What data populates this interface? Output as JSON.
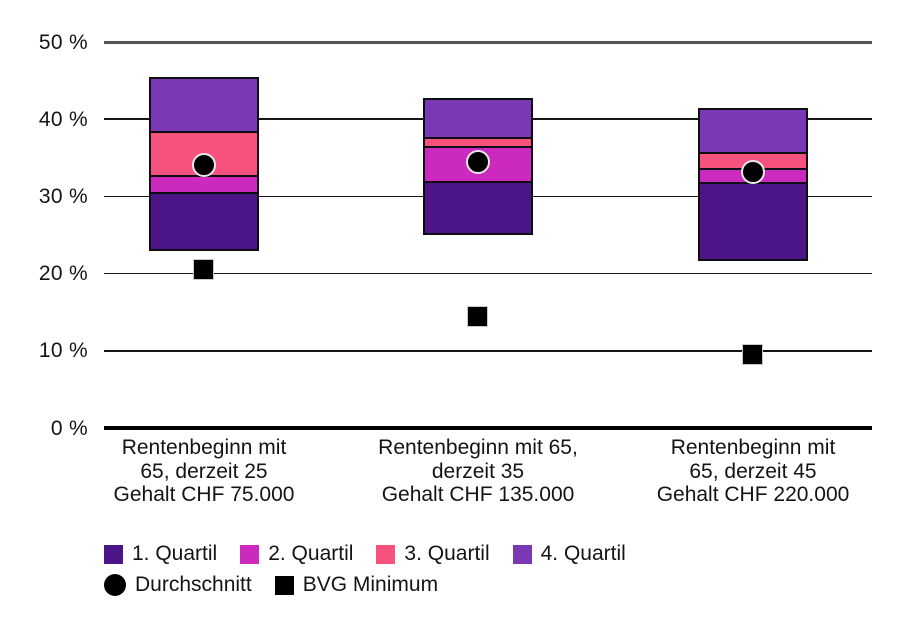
{
  "chart_data": {
    "type": "bar",
    "subtype": "stacked-quartile-ranges-with-markers",
    "title": "",
    "xlabel": "",
    "ylabel": "",
    "ylim": [
      0,
      50
    ],
    "grid": true,
    "y_ticks": [
      {
        "value": 0,
        "label": "0 %"
      },
      {
        "value": 10,
        "label": "10 %"
      },
      {
        "value": 20,
        "label": "20 %"
      },
      {
        "value": 30,
        "label": "30 %"
      },
      {
        "value": 40,
        "label": "40 %"
      },
      {
        "value": 50,
        "label": "50 %"
      }
    ],
    "categories": [
      {
        "lines": [
          "Rentenbeginn mit",
          "65, derzeit 25",
          "Gehalt CHF 75.000"
        ]
      },
      {
        "lines": [
          "Rentenbeginn mit 65,",
          "derzeit 35",
          "Gehalt CHF 135.000"
        ]
      },
      {
        "lines": [
          "Rentenbeginn mit",
          "65, derzeit 45",
          "Gehalt CHF 220.000"
        ]
      }
    ],
    "series": [
      {
        "name": "1. Quartil",
        "color": "#4B1487",
        "ranges": [
          [
            23.1,
            30.5
          ],
          [
            25.1,
            31.9
          ],
          [
            21.7,
            31.7
          ]
        ]
      },
      {
        "name": "2. Quartil",
        "color": "#CC29BE",
        "ranges": [
          [
            30.5,
            32.6
          ],
          [
            31.9,
            36.4
          ],
          [
            31.7,
            33.6
          ]
        ]
      },
      {
        "name": "3. Quartil",
        "color": "#F7527D",
        "ranges": [
          [
            32.6,
            38.4
          ],
          [
            36.4,
            37.6
          ],
          [
            33.6,
            35.6
          ]
        ]
      },
      {
        "name": "4. Quartil",
        "color": "#7A38B4",
        "ranges": [
          [
            38.4,
            45.4
          ],
          [
            37.6,
            42.6
          ],
          [
            35.6,
            41.3
          ]
        ]
      }
    ],
    "markers": [
      {
        "name": "Durchschnitt",
        "shape": "circle",
        "color": "#000000",
        "values": [
          34.1,
          34.5,
          33.1
        ]
      },
      {
        "name": "BVG Minimum",
        "shape": "square",
        "color": "#000000",
        "values": [
          20.5,
          14.4,
          9.4
        ]
      }
    ],
    "legend_position": "bottom-left",
    "legend_rows": [
      [
        {
          "kind": "swatch",
          "color": "#4B1487",
          "label": "1. Quartil"
        },
        {
          "kind": "swatch",
          "color": "#CC29BE",
          "label": "2. Quartil"
        },
        {
          "kind": "swatch",
          "color": "#F7527D",
          "label": "3. Quartil"
        },
        {
          "kind": "swatch",
          "color": "#7A38B4",
          "label": "4. Quartil"
        }
      ],
      [
        {
          "kind": "circle",
          "color": "#000000",
          "label": "Durchschnitt"
        },
        {
          "kind": "square",
          "color": "#000000",
          "label": "BVG Minimum"
        }
      ]
    ]
  }
}
